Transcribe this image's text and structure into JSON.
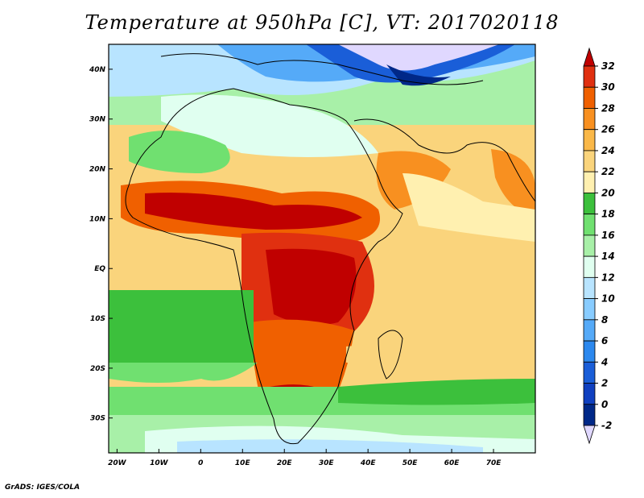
{
  "title": "Temperature at 950hPa [C], VT: 2017020118",
  "footer": "GrADS: IGES/COLA",
  "map": {
    "x_axis_labels": [
      "20W",
      "10W",
      "0",
      "10E",
      "20E",
      "30E",
      "40E",
      "50E",
      "60E",
      "70E"
    ],
    "y_axis_labels": [
      "40N",
      "30N",
      "20N",
      "10N",
      "EQ",
      "10S",
      "20S",
      "30S"
    ],
    "lon_range": [
      -22,
      80
    ],
    "lat_range": [
      -37,
      45
    ]
  },
  "colorbar": {
    "labels": [
      "32",
      "30",
      "28",
      "26",
      "24",
      "22",
      "20",
      "18",
      "16",
      "14",
      "12",
      "10",
      "8",
      "6",
      "4",
      "2",
      "0",
      "-2"
    ],
    "colors": [
      "#c00000",
      "#e03010",
      "#f06000",
      "#f89020",
      "#fab848",
      "#fad47c",
      "#fff0b0",
      "#3cc03c",
      "#70e070",
      "#a8f0a8",
      "#e0fff0",
      "#b8e4ff",
      "#88ccff",
      "#55aaf8",
      "#2c88ee",
      "#1a5ed8",
      "#1040c0",
      "#002888",
      "#e0d8ff"
    ]
  }
}
